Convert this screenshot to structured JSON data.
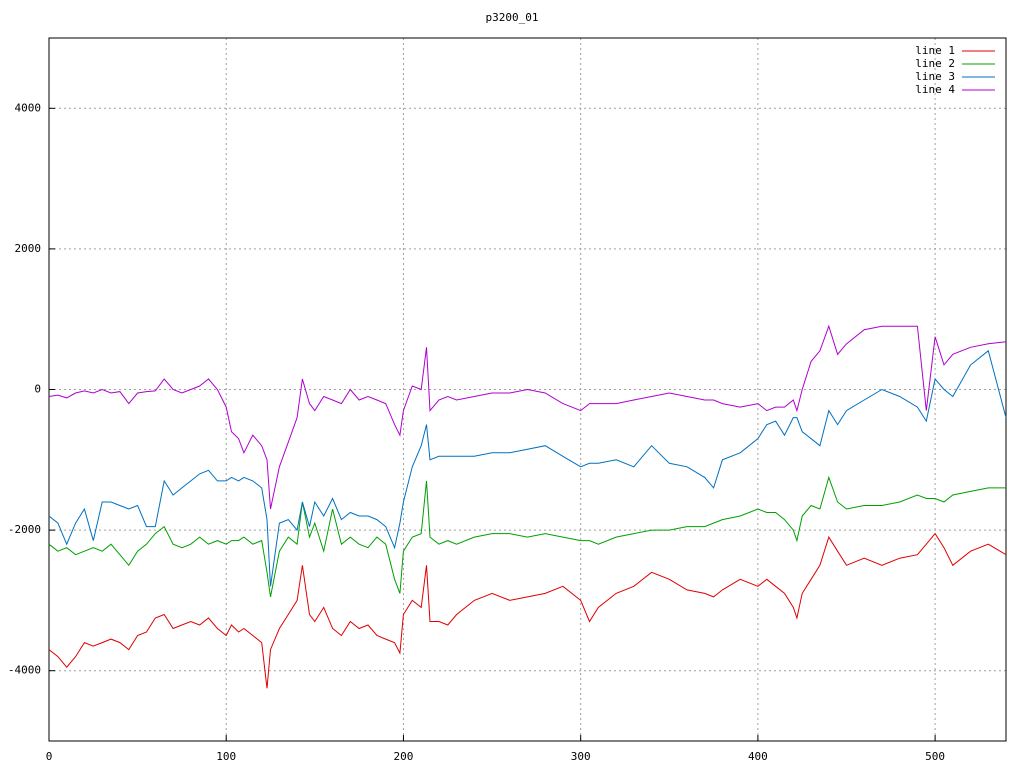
{
  "chart_data": {
    "type": "line",
    "title": "p3200_01",
    "x": [
      0,
      5,
      10,
      15,
      20,
      25,
      30,
      35,
      40,
      45,
      50,
      55,
      60,
      65,
      70,
      75,
      80,
      85,
      90,
      95,
      100,
      103,
      107,
      110,
      115,
      120,
      123,
      125,
      130,
      135,
      140,
      143,
      147,
      150,
      155,
      160,
      165,
      170,
      175,
      180,
      185,
      190,
      195,
      198,
      200,
      205,
      210,
      213,
      215,
      220,
      225,
      230,
      240,
      250,
      260,
      270,
      280,
      290,
      300,
      305,
      310,
      320,
      330,
      340,
      350,
      360,
      370,
      375,
      380,
      390,
      400,
      405,
      410,
      415,
      420,
      422,
      425,
      430,
      435,
      440,
      445,
      450,
      460,
      470,
      480,
      490,
      495,
      500,
      505,
      510,
      520,
      530,
      540
    ],
    "series": [
      {
        "name": "line 1",
        "color": "#e00000",
        "values": [
          -3700,
          -3800,
          -3950,
          -3800,
          -3600,
          -3650,
          -3600,
          -3550,
          -3600,
          -3700,
          -3500,
          -3450,
          -3250,
          -3200,
          -3400,
          -3350,
          -3300,
          -3350,
          -3250,
          -3400,
          -3500,
          -3350,
          -3450,
          -3400,
          -3500,
          -3600,
          -4250,
          -3700,
          -3400,
          -3200,
          -3000,
          -2500,
          -3200,
          -3300,
          -3100,
          -3400,
          -3500,
          -3300,
          -3400,
          -3350,
          -3500,
          -3550,
          -3600,
          -3750,
          -3200,
          -3000,
          -3100,
          -2500,
          -3300,
          -3300,
          -3350,
          -3200,
          -3000,
          -2900,
          -3000,
          -2950,
          -2900,
          -2800,
          -3000,
          -3300,
          -3100,
          -2900,
          -2800,
          -2600,
          -2700,
          -2850,
          -2900,
          -2950,
          -2850,
          -2700,
          -2800,
          -2700,
          -2800,
          -2900,
          -3100,
          -3250,
          -2900,
          -2700,
          -2500,
          -2100,
          -2300,
          -2500,
          -2400,
          -2500,
          -2400,
          -2350,
          -2200,
          -2050,
          -2250,
          -2500,
          -2300,
          -2200,
          -2350
        ]
      },
      {
        "name": "line 2",
        "color": "#00a000",
        "values": [
          -2200,
          -2300,
          -2250,
          -2350,
          -2300,
          -2250,
          -2300,
          -2200,
          -2350,
          -2500,
          -2300,
          -2200,
          -2050,
          -1950,
          -2200,
          -2250,
          -2200,
          -2100,
          -2200,
          -2150,
          -2200,
          -2150,
          -2150,
          -2100,
          -2200,
          -2150,
          -2600,
          -2950,
          -2300,
          -2100,
          -2200,
          -1600,
          -2100,
          -1900,
          -2300,
          -1700,
          -2200,
          -2100,
          -2200,
          -2250,
          -2100,
          -2200,
          -2700,
          -2900,
          -2300,
          -2100,
          -2050,
          -1300,
          -2100,
          -2200,
          -2150,
          -2200,
          -2100,
          -2050,
          -2050,
          -2100,
          -2050,
          -2100,
          -2150,
          -2150,
          -2200,
          -2100,
          -2050,
          -2000,
          -2000,
          -1950,
          -1950,
          -1900,
          -1850,
          -1800,
          -1700,
          -1750,
          -1750,
          -1850,
          -2000,
          -2150,
          -1800,
          -1650,
          -1700,
          -1250,
          -1600,
          -1700,
          -1650,
          -1650,
          -1600,
          -1500,
          -1550,
          -1550,
          -1600,
          -1500,
          -1450,
          -1400,
          -1400
        ]
      },
      {
        "name": "line 3",
        "color": "#0070c0",
        "values": [
          -1800,
          -1900,
          -2200,
          -1900,
          -1700,
          -2150,
          -1600,
          -1600,
          -1650,
          -1700,
          -1650,
          -1950,
          -1950,
          -1300,
          -1500,
          -1400,
          -1300,
          -1200,
          -1150,
          -1300,
          -1300,
          -1250,
          -1300,
          -1250,
          -1300,
          -1400,
          -1850,
          -2800,
          -1900,
          -1850,
          -2000,
          -1600,
          -1950,
          -1600,
          -1800,
          -1550,
          -1850,
          -1750,
          -1800,
          -1800,
          -1850,
          -1950,
          -2250,
          -1900,
          -1600,
          -1100,
          -800,
          -500,
          -1000,
          -950,
          -950,
          -950,
          -950,
          -900,
          -900,
          -850,
          -800,
          -950,
          -1100,
          -1050,
          -1050,
          -1000,
          -1100,
          -800,
          -1050,
          -1100,
          -1250,
          -1400,
          -1000,
          -900,
          -700,
          -500,
          -450,
          -650,
          -400,
          -400,
          -600,
          -700,
          -800,
          -300,
          -500,
          -300,
          -150,
          0,
          -100,
          -250,
          -450,
          150,
          0,
          -100,
          350,
          550,
          -400
        ]
      },
      {
        "name": "line 4",
        "color": "#b000d0",
        "values": [
          -100,
          -80,
          -120,
          -50,
          -20,
          -50,
          0,
          -50,
          -30,
          -200,
          -50,
          -30,
          -20,
          150,
          0,
          -50,
          0,
          50,
          150,
          0,
          -250,
          -600,
          -700,
          -900,
          -650,
          -800,
          -1000,
          -1700,
          -1100,
          -750,
          -400,
          150,
          -200,
          -300,
          -100,
          -150,
          -200,
          0,
          -150,
          -100,
          -150,
          -200,
          -500,
          -650,
          -300,
          50,
          0,
          600,
          -300,
          -150,
          -100,
          -150,
          -100,
          -50,
          -50,
          0,
          -50,
          -200,
          -300,
          -200,
          -200,
          -200,
          -150,
          -100,
          -50,
          -100,
          -150,
          -150,
          -200,
          -250,
          -200,
          -300,
          -250,
          -250,
          -150,
          -300,
          0,
          400,
          550,
          900,
          500,
          650,
          850,
          900,
          900,
          900,
          -300,
          750,
          350,
          500,
          600,
          650,
          680
        ]
      }
    ],
    "xlim": [
      0,
      540
    ],
    "ylim": [
      -5000,
      5000
    ],
    "xticks": [
      0,
      100,
      200,
      300,
      400,
      500
    ],
    "yticks": [
      -4000,
      -2000,
      0,
      2000,
      4000
    ],
    "grid": true,
    "legend": "top-right"
  }
}
